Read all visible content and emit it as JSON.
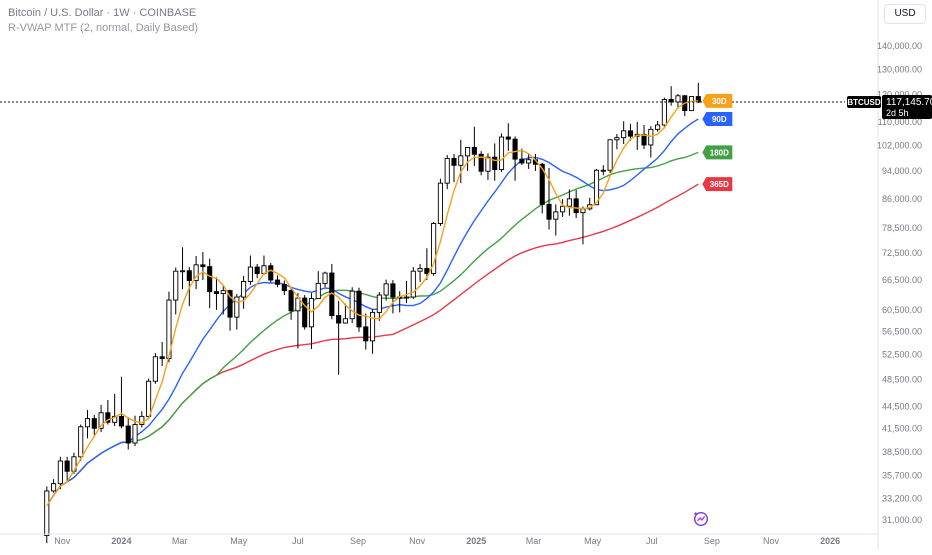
{
  "header": {
    "title": "Bitcoin / U.S. Dollar · 1W · COINBASE",
    "indicator": "R-VWAP MTF (2, normal, Daily Based)",
    "currency": "USD"
  },
  "price_label": {
    "symbol": "BTCUSD",
    "value": "117,145.70",
    "countdown": "2d 5h"
  },
  "colors": {
    "up_candle": "#ffffff",
    "down_candle": "#000000",
    "vwap_30d": "#f7a21b",
    "vwap_90d": "#2962ff",
    "vwap_180d": "#43a047",
    "vwap_365d": "#e53946",
    "price_line": "#131722"
  },
  "chart_data": {
    "type": "candlestick",
    "title": "Bitcoin / U.S. Dollar · 1W · COINBASE",
    "ylabel": "USD",
    "y_scale": "log",
    "ylim": [
      29800,
      152000
    ],
    "y_ticks": [
      "31,000.00",
      "33,200.00",
      "35,700.00",
      "38,500.00",
      "41,500.00",
      "44,500.00",
      "48,500.00",
      "52,500.00",
      "56,500.00",
      "60,500.00",
      "66,500.00",
      "72,500.00",
      "78,500.00",
      "86,000.00",
      "94,000.00",
      "102,000.00",
      "110,000.00",
      "120,000.00",
      "130,000.00",
      "140,000.00"
    ],
    "x_ticks": [
      "Nov",
      "2024",
      "Mar",
      "May",
      "Jul",
      "Sep",
      "Nov",
      "2025",
      "Mar",
      "May",
      "Jul",
      "Sep",
      "Nov",
      "2026"
    ],
    "x_range": [
      "2023-10-09",
      "2026-02-09"
    ],
    "candles": [
      [
        29500,
        34500,
        28800,
        34000
      ],
      [
        34000,
        35300,
        33800,
        34800
      ],
      [
        34800,
        37900,
        34200,
        37400
      ],
      [
        37400,
        37900,
        35100,
        36200
      ],
      [
        36200,
        38400,
        35900,
        37900
      ],
      [
        37900,
        42000,
        37400,
        41700
      ],
      [
        41700,
        44000,
        40200,
        42800
      ],
      [
        42800,
        43300,
        40600,
        41500
      ],
      [
        41500,
        44700,
        41000,
        43600
      ],
      [
        43600,
        45400,
        42000,
        42300
      ],
      [
        42300,
        46300,
        41800,
        43100
      ],
      [
        43100,
        48900,
        41500,
        41800
      ],
      [
        41800,
        43000,
        38800,
        39600
      ],
      [
        39600,
        43200,
        39200,
        42000
      ],
      [
        42000,
        43800,
        41600,
        43100
      ],
      [
        43100,
        48600,
        42700,
        48200
      ],
      [
        48200,
        52700,
        47800,
        52100
      ],
      [
        52100,
        54600,
        50600,
        51800
      ],
      [
        51800,
        64100,
        51200,
        62400
      ],
      [
        62400,
        69200,
        59600,
        68400
      ],
      [
        68400,
        73800,
        64600,
        68500
      ],
      [
        68500,
        69300,
        61200,
        66400
      ],
      [
        66400,
        71800,
        64600,
        69800
      ],
      [
        69800,
        72700,
        66500,
        69400
      ],
      [
        69400,
        71200,
        60800,
        64100
      ],
      [
        64100,
        67100,
        60500,
        63700
      ],
      [
        63700,
        65300,
        59600,
        64300
      ],
      [
        64300,
        64500,
        56600,
        59100
      ],
      [
        59100,
        63600,
        56800,
        63000
      ],
      [
        63000,
        67400,
        60700,
        66200
      ],
      [
        66200,
        71900,
        65500,
        69300
      ],
      [
        69300,
        70000,
        66900,
        67900
      ],
      [
        67900,
        71900,
        67600,
        69600
      ],
      [
        69600,
        70200,
        66000,
        66500
      ],
      [
        66500,
        67500,
        65000,
        65600
      ],
      [
        65600,
        66400,
        63400,
        64300
      ],
      [
        64300,
        64800,
        58600,
        60300
      ],
      [
        60300,
        63800,
        53500,
        62800
      ],
      [
        62800,
        63400,
        56800,
        57300
      ],
      [
        57300,
        63800,
        53400,
        62700
      ],
      [
        62700,
        68400,
        62600,
        65800
      ],
      [
        65800,
        68300,
        65000,
        68000
      ],
      [
        68000,
        70000,
        58700,
        59400
      ],
      [
        59400,
        62200,
        49200,
        58000
      ],
      [
        58000,
        61700,
        57900,
        58800
      ],
      [
        58800,
        65000,
        58000,
        64200
      ],
      [
        64200,
        64900,
        56400,
        57300
      ],
      [
        57300,
        59800,
        53300,
        54800
      ],
      [
        54800,
        60600,
        52600,
        60000
      ],
      [
        60000,
        64000,
        58400,
        63400
      ],
      [
        63400,
        66600,
        62300,
        65700
      ],
      [
        65700,
        66500,
        59800,
        63000
      ],
      [
        63000,
        64200,
        60000,
        62900
      ],
      [
        62900,
        66300,
        61800,
        63000
      ],
      [
        63000,
        69300,
        62600,
        68400
      ],
      [
        68400,
        70000,
        66100,
        69000
      ],
      [
        69000,
        73600,
        66500,
        67900
      ],
      [
        67900,
        80000,
        67400,
        79600
      ],
      [
        79600,
        91800,
        79000,
        90500
      ],
      [
        90500,
        99000,
        88800,
        97900
      ],
      [
        97900,
        99300,
        90800,
        95800
      ],
      [
        95800,
        103900,
        90500,
        98700
      ],
      [
        98700,
        101500,
        94100,
        101400
      ],
      [
        101400,
        108300,
        95600,
        99200
      ],
      [
        99200,
        100200,
        92800,
        94000
      ],
      [
        94000,
        99500,
        91400,
        98300
      ],
      [
        98300,
        102700,
        91200,
        94500
      ],
      [
        94500,
        106000,
        93800,
        104800
      ],
      [
        104800,
        109500,
        100300,
        104100
      ],
      [
        104100,
        105000,
        91200,
        97700
      ],
      [
        97700,
        101000,
        95900,
        96500
      ],
      [
        96500,
        99500,
        94700,
        97500
      ],
      [
        97500,
        99300,
        94100,
        96100
      ],
      [
        96100,
        96600,
        82200,
        84600
      ],
      [
        84600,
        95000,
        78100,
        80700
      ],
      [
        80700,
        84600,
        76600,
        82600
      ],
      [
        82600,
        86000,
        81300,
        84100
      ],
      [
        84100,
        88700,
        81600,
        86100
      ],
      [
        86100,
        88600,
        81000,
        82400
      ],
      [
        82400,
        84000,
        74500,
        83400
      ],
      [
        83400,
        86400,
        83000,
        84500
      ],
      [
        84500,
        94700,
        84400,
        94300
      ],
      [
        94300,
        95800,
        92800,
        94300
      ],
      [
        94300,
        104000,
        93500,
        103900
      ],
      [
        103900,
        105800,
        100800,
        104600
      ],
      [
        104600,
        110200,
        102500,
        106900
      ],
      [
        106900,
        109300,
        103600,
        105100
      ],
      [
        105100,
        110000,
        100600,
        105700
      ],
      [
        105700,
        108900,
        100900,
        102200
      ],
      [
        102200,
        108500,
        98200,
        107400
      ],
      [
        107400,
        110300,
        106600,
        108900
      ],
      [
        108900,
        118800,
        107700,
        118100
      ],
      [
        118100,
        123200,
        115800,
        117200
      ],
      [
        117200,
        120200,
        114700,
        119500
      ],
      [
        119500,
        119800,
        112000,
        114000
      ],
      [
        114000,
        119200,
        113900,
        119200
      ],
      [
        119200,
        124500,
        116800,
        117146
      ]
    ],
    "series": [
      {
        "name": "30D",
        "values": []
      },
      {
        "name": "90D",
        "values": []
      },
      {
        "name": "180D",
        "values": []
      },
      {
        "name": "365D",
        "values": []
      }
    ],
    "last_close": 117145.7,
    "grid": false,
    "legend": "top-left"
  }
}
